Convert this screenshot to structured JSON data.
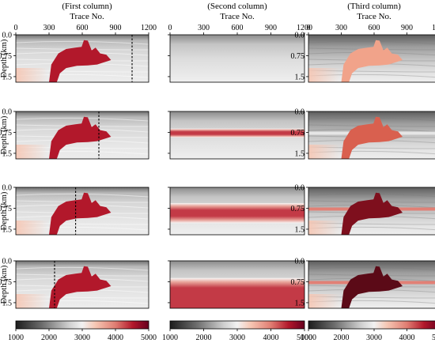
{
  "columns": [
    {
      "title": "(First column)",
      "xlabel": "Trace No."
    },
    {
      "title": "(Second column)",
      "xlabel": "Trace No."
    },
    {
      "title": "(Third column)",
      "xlabel": "Trace No."
    }
  ],
  "ylabel": "Depth (km)",
  "chart_data": {
    "type": "heatmap",
    "layout": "4 rows x 3 columns of velocity model panels",
    "x_ticks": [
      "0",
      "300",
      "600",
      "900",
      "1200"
    ],
    "x_range": [
      0,
      1200
    ],
    "y_ticks": [
      "0.0",
      "0.75",
      "1.5"
    ],
    "y_range": [
      0,
      1.7
    ],
    "colorbar": {
      "ticks": [
        "1000",
        "2000",
        "3000",
        "4000",
        "5000"
      ],
      "range": [
        1000,
        5000
      ],
      "colormap": "gray-to-red",
      "colors": [
        "#1c1c1c",
        "#6e6e6e",
        "#cfcfcf",
        "#f2f2f2",
        "#f6c6b3",
        "#e07d72",
        "#b2182b",
        "#67001f"
      ]
    },
    "dashed_line_trace": [
      1050,
      750,
      540,
      350
    ],
    "second_column_red_band_depth_km": [
      [
        null,
        null
      ],
      [
        0.7,
        0.85
      ],
      [
        0.65,
        1.2
      ],
      [
        0.7,
        1.7
      ]
    ],
    "colors": {
      "salt_body": "#b2182b",
      "band": "#c33a46",
      "third_col_salt": [
        "#f1a38a",
        "#d9604f",
        "#7e0f1d",
        "#5b0a17"
      ]
    }
  }
}
